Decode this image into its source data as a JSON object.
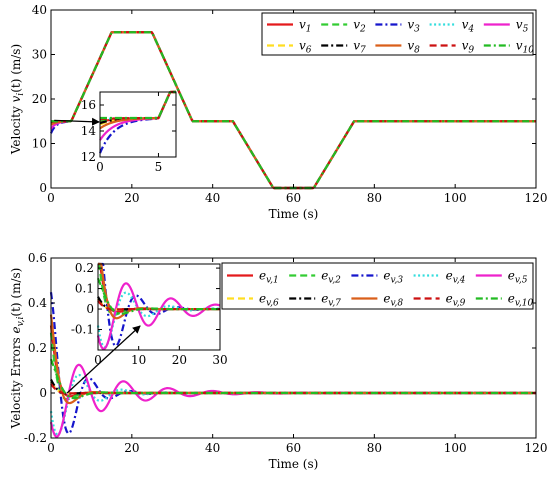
{
  "chart_data": [
    {
      "type": "line",
      "id": "velocity",
      "xlabel": "Time (s)",
      "ylabel": "Velocity v_i(t) (m/s)",
      "ylabel_main": "Velocity ",
      "ylabel_sym": "v",
      "ylabel_sub": "i",
      "ylabel_rest": "(t) (m/s)",
      "xlim": [
        0,
        120
      ],
      "ylim": [
        0,
        40
      ],
      "xticks": [
        "0",
        "20",
        "40",
        "60",
        "80",
        "100",
        "120"
      ],
      "yticks": [
        "0",
        "10",
        "20",
        "30",
        "40"
      ],
      "legend_placement": "top-right",
      "grid": false,
      "profile_breakpoints": {
        "x": [
          0,
          5,
          15,
          25,
          35,
          45,
          55,
          65,
          75,
          120
        ],
        "y": [
          15,
          15,
          35,
          35,
          15,
          15,
          0,
          0,
          15,
          15
        ]
      },
      "initial_values": [
        14.7,
        14.8,
        12.3,
        14.9,
        13.3,
        14.5,
        14.6,
        14.2,
        14.9,
        15.0
      ],
      "inset": {
        "xlim": [
          0,
          6.5
        ],
        "ylim": [
          12,
          17
        ],
        "xticks": [
          "0",
          "5"
        ],
        "yticks": [
          "12",
          "14",
          "16"
        ],
        "placement": "lower-left"
      }
    },
    {
      "type": "line",
      "id": "velocity-errors",
      "xlabel": "Time (s)",
      "ylabel": "Velocity Errors e_{v,i}(t) (m/s)",
      "ylabel_main": "Velocity Errors ",
      "ylabel_sym": "e",
      "ylabel_sub": "v,i",
      "ylabel_rest": "(t) (m/s)",
      "xlim": [
        0,
        120
      ],
      "ylim": [
        -0.2,
        0.6
      ],
      "xticks": [
        "0",
        "20",
        "40",
        "60",
        "80",
        "100",
        "120"
      ],
      "yticks": [
        "-0.2",
        "0",
        "0.2",
        "0.4",
        "0.6"
      ],
      "legend_placement": "top-right",
      "grid": false,
      "error_params": [
        {
          "amp": 0.3,
          "decay": 0.55,
          "period": 13.0,
          "phase": 0.0
        },
        {
          "amp": 0.28,
          "decay": 0.5,
          "period": 12.0,
          "phase": 0.3
        },
        {
          "amp": 0.45,
          "decay": 0.2,
          "period": 10.0,
          "phase": 0.1
        },
        {
          "amp": 0.25,
          "decay": 0.16,
          "period": 10.5,
          "phase": 1.9
        },
        {
          "amp": 0.22,
          "decay": 0.08,
          "period": 11.0,
          "phase": 2.2
        },
        {
          "amp": 0.05,
          "decay": 0.6,
          "period": 12.0,
          "phase": 0.0
        },
        {
          "amp": 0.06,
          "decay": 0.6,
          "period": 12.0,
          "phase": 0.0
        },
        {
          "amp": 0.35,
          "decay": 0.4,
          "period": 12.0,
          "phase": 0.1
        },
        {
          "amp": 0.04,
          "decay": 0.6,
          "period": 12.0,
          "phase": 0.0
        },
        {
          "amp": 0.15,
          "decay": 0.3,
          "period": 14.0,
          "phase": 0.0
        }
      ],
      "inset": {
        "xlim": [
          0,
          30
        ],
        "ylim": [
          -0.2,
          0.22
        ],
        "xticks": [
          "0",
          "10",
          "20",
          "30"
        ],
        "yticks": [
          "-0.1",
          "0",
          "0.1",
          "0.2"
        ],
        "placement": "top-left"
      }
    }
  ],
  "series_style": [
    {
      "color": "#e41a1c",
      "dash": "",
      "width": 2.2
    },
    {
      "color": "#33cc33",
      "dash": "7,4",
      "width": 2.2
    },
    {
      "color": "#1515cc",
      "dash": "7,3,2,3",
      "width": 2.2
    },
    {
      "color": "#33dddd",
      "dash": "2,2.5",
      "width": 2.2
    },
    {
      "color": "#ee22cc",
      "dash": "",
      "width": 2.2
    },
    {
      "color": "#ffdd22",
      "dash": "7,4",
      "width": 2.2
    },
    {
      "color": "#000000",
      "dash": "7,3,2,3",
      "width": 2.2
    },
    {
      "color": "#d95f1a",
      "dash": "",
      "width": 2.2
    },
    {
      "color": "#cc1111",
      "dash": "7,4",
      "width": 2.2
    },
    {
      "color": "#22bb22",
      "dash": "7,3,2,3",
      "width": 2.2
    }
  ],
  "legend_top": [
    {
      "sym": "v",
      "sub": "1"
    },
    {
      "sym": "v",
      "sub": "2"
    },
    {
      "sym": "v",
      "sub": "3"
    },
    {
      "sym": "v",
      "sub": "4"
    },
    {
      "sym": "v",
      "sub": "5"
    },
    {
      "sym": "v",
      "sub": "6"
    },
    {
      "sym": "v",
      "sub": "7"
    },
    {
      "sym": "v",
      "sub": "8"
    },
    {
      "sym": "v",
      "sub": "9"
    },
    {
      "sym": "v",
      "sub": "10"
    }
  ],
  "legend_bottom": [
    {
      "sym": "e",
      "sub": "v,1"
    },
    {
      "sym": "e",
      "sub": "v,2"
    },
    {
      "sym": "e",
      "sub": "v,3"
    },
    {
      "sym": "e",
      "sub": "v,4"
    },
    {
      "sym": "e",
      "sub": "v,5"
    },
    {
      "sym": "e",
      "sub": "v,6"
    },
    {
      "sym": "e",
      "sub": "v,7"
    },
    {
      "sym": "e",
      "sub": "v,8"
    },
    {
      "sym": "e",
      "sub": "v,9"
    },
    {
      "sym": "e",
      "sub": "v,10"
    }
  ]
}
